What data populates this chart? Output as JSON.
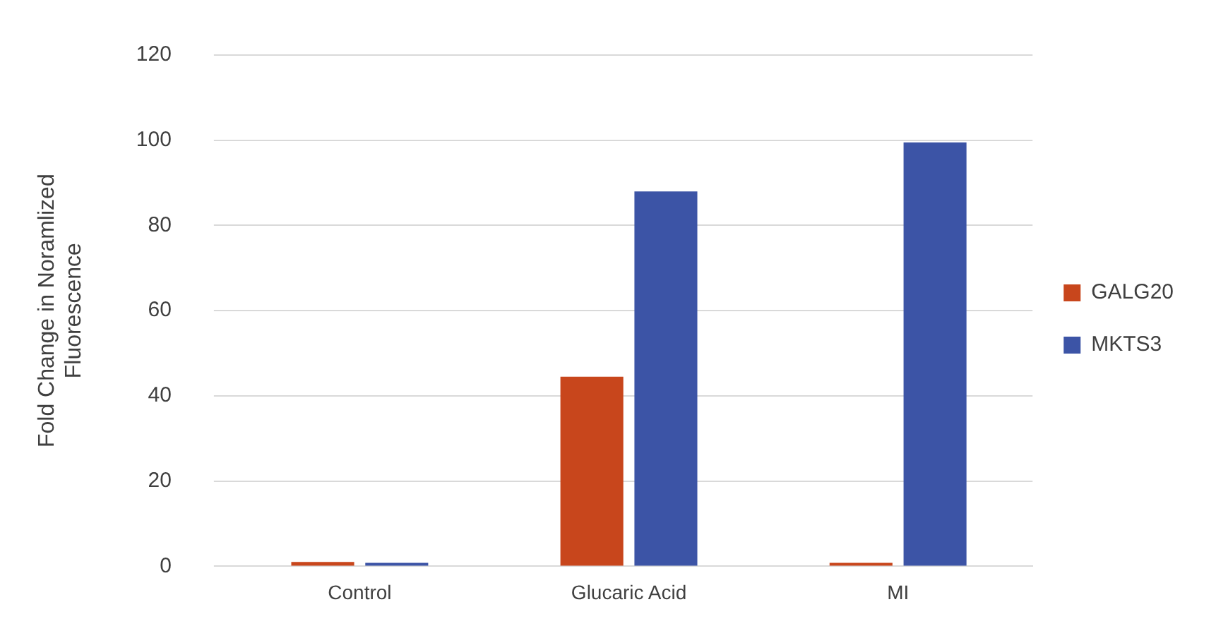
{
  "chart_data": {
    "type": "bar",
    "ylabel": "Fold Change in Noramlized Fluorescence",
    "categories": [
      "Control",
      "Glucaric Acid",
      "MI"
    ],
    "series": [
      {
        "name": "GALG20",
        "color": "#c8461c",
        "values": [
          1,
          44.5,
          0.8
        ]
      },
      {
        "name": "MKTS3",
        "color": "#3c54a6",
        "values": [
          0.8,
          88,
          99.5
        ]
      }
    ],
    "ylim": [
      0,
      120
    ],
    "yticks": [
      0,
      20,
      40,
      60,
      80,
      100,
      120
    ],
    "grid": "y",
    "legend": "right"
  }
}
